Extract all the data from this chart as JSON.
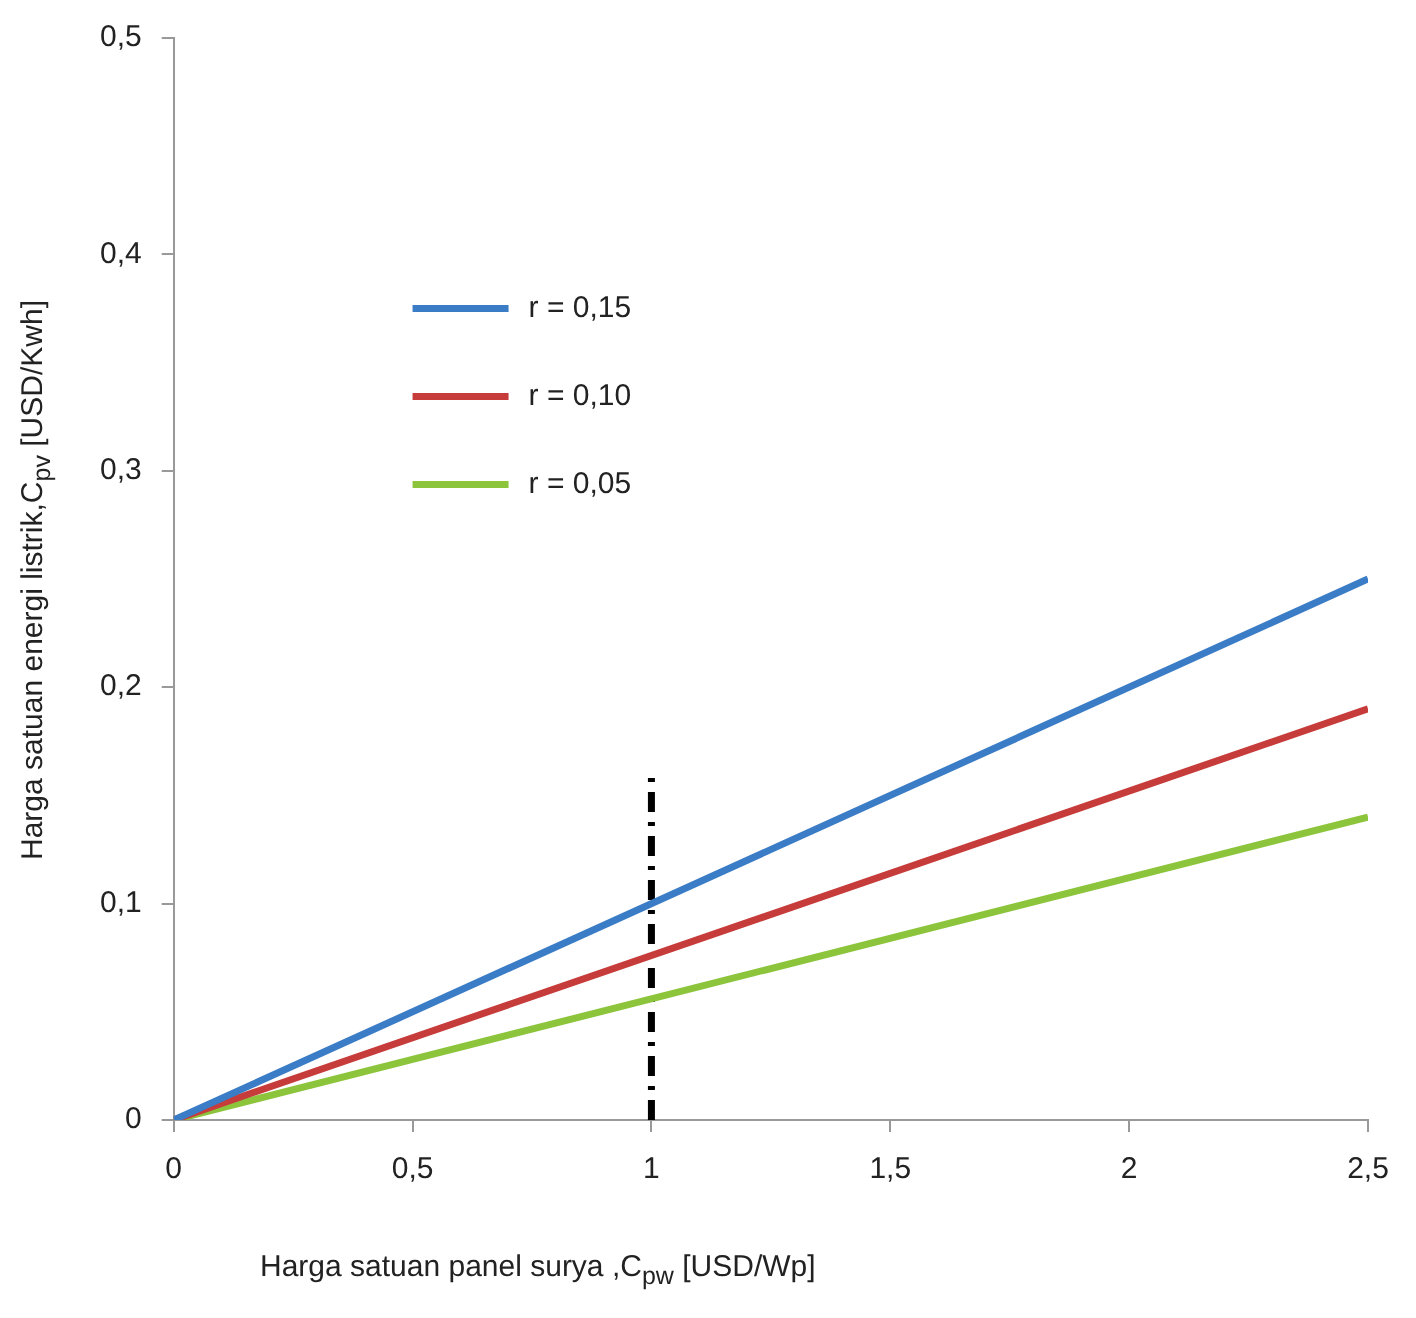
{
  "chart_data": {
    "type": "line",
    "xlabel": "Harga satuan panel surya ,C$_{pw}$ [USD/Wp]",
    "ylabel": "Harga satuan energi listrik,C$_{pv}$ [USD/Kwh]",
    "x": [
      0,
      2.5
    ],
    "series": [
      {
        "name": "r = 0,15",
        "color": "#3a7cc6",
        "values": [
          0,
          0.25
        ]
      },
      {
        "name": "r = 0,10",
        "color": "#c63c3a",
        "values": [
          0,
          0.19
        ]
      },
      {
        "name": "r = 0,05",
        "color": "#8cc43c",
        "values": [
          0,
          0.14
        ]
      },
      {
        "color": "#000000",
        "x": [
          1,
          1
        ],
        "values": [
          0,
          0.16
        ],
        "line_style": "dashed"
      }
    ],
    "xlim": [
      0,
      2.5
    ],
    "xticks": [
      0,
      {
        "value": 0.5,
        "label": "0,5"
      },
      1,
      {
        "value": 1.5,
        "label": "1,5"
      },
      2,
      {
        "value": 2.5,
        "label": "2,5"
      }
    ],
    "ylim": [
      0,
      0.5
    ],
    "yticks": [
      0,
      {
        "value": 0.1,
        "label": "0,1"
      },
      {
        "value": 0.2,
        "label": "0,2"
      },
      {
        "value": 0.3,
        "label": "0,3"
      },
      {
        "value": 0.4,
        "label": "0,4"
      },
      {
        "value": 0.5,
        "label": "0,5"
      }
    ],
    "grid": false,
    "legend": "top left",
    "marker": "none",
    "line_style": "solid"
  }
}
